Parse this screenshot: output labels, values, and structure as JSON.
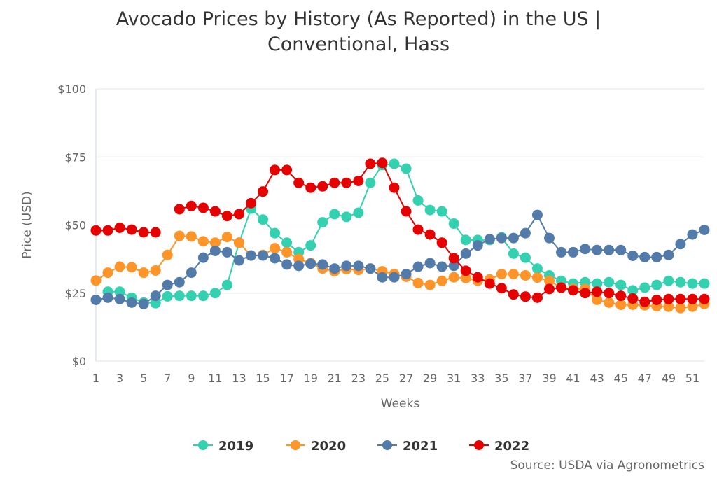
{
  "chart_data": {
    "type": "line",
    "title_line1": "Avocado Prices by History (As Reported) in the US |",
    "title_line2": "Conventional, Hass",
    "xlabel": "Weeks",
    "ylabel": "Price (USD)",
    "ylim": [
      0,
      100
    ],
    "yticks": [
      "$0",
      "$25",
      "$50",
      "$75",
      "$100"
    ],
    "xtick_labels": [
      "1",
      "3",
      "5",
      "7",
      "9",
      "11",
      "13",
      "15",
      "17",
      "19",
      "21",
      "23",
      "25",
      "27",
      "29",
      "31",
      "33",
      "35",
      "37",
      "39",
      "41",
      "43",
      "45",
      "47",
      "49",
      "51"
    ],
    "x": [
      1,
      2,
      3,
      4,
      5,
      6,
      7,
      8,
      9,
      10,
      11,
      12,
      13,
      14,
      15,
      16,
      17,
      18,
      19,
      20,
      21,
      22,
      23,
      24,
      25,
      26,
      27,
      28,
      29,
      30,
      31,
      32,
      33,
      34,
      35,
      36,
      37,
      38,
      39,
      40,
      41,
      42,
      43,
      44,
      45,
      46,
      47,
      48,
      49,
      50,
      51,
      52
    ],
    "grid": "horizontal",
    "legend": "bottom",
    "source": "Source: USDA via Agronometrics",
    "series": [
      {
        "name": "2019",
        "color": "#33d1b0",
        "values": [
          null,
          25.5,
          25.5,
          23.3,
          21.5,
          21.3,
          23.8,
          24,
          24,
          24,
          25,
          28,
          43.5,
          56,
          52,
          47,
          43.5,
          40,
          42.5,
          51,
          54,
          53,
          54.5,
          65.5,
          72,
          72.5,
          70.7,
          59,
          55.5,
          55,
          50.5,
          44.5,
          44.5,
          44.5,
          45.5,
          39.5,
          38,
          34,
          31.5,
          29.5,
          28.5,
          29,
          28.5,
          29,
          28,
          26,
          27,
          28,
          29.5,
          29,
          28.5,
          28.5
        ]
      },
      {
        "name": "2020",
        "color": "#ff9429",
        "values": [
          29.6,
          32.5,
          34.7,
          34.5,
          32.5,
          33.3,
          39,
          46,
          45.8,
          44,
          43.5,
          45.6,
          43.5,
          38.8,
          39,
          41.5,
          40,
          37.5,
          36,
          34,
          33,
          33.8,
          33.5,
          34,
          33,
          32,
          31,
          28.7,
          28,
          29.5,
          30.8,
          30.5,
          29.5,
          30,
          32,
          32,
          31.5,
          30.7,
          29.5,
          27,
          26.5,
          26.5,
          22.5,
          21.5,
          20.7,
          20.7,
          20.5,
          20.2,
          20,
          19.5,
          20,
          21
        ]
      },
      {
        "name": "2021",
        "color": "#527baa",
        "values": [
          22.5,
          23.3,
          22.8,
          21.5,
          21,
          24,
          28,
          29,
          32.5,
          38,
          40.5,
          40,
          37,
          38.8,
          38.8,
          37.8,
          35.5,
          35,
          35.8,
          35.5,
          34,
          35,
          35,
          34,
          30.8,
          30.8,
          32,
          34.7,
          36,
          34.7,
          35,
          39.5,
          42.5,
          44.8,
          45.2,
          45.2,
          47,
          53.7,
          45.2,
          40,
          40,
          41.2,
          40.8,
          40.8,
          40.8,
          38.7,
          38.2,
          38.2,
          39,
          43,
          46.5,
          48.2
        ]
      },
      {
        "name": "2022",
        "color": "#e60000",
        "values": [
          48,
          48,
          49,
          48.3,
          47.3,
          47.3,
          null,
          55.8,
          57,
          56.3,
          55,
          53.3,
          54,
          58,
          62.3,
          70.2,
          70.2,
          65.5,
          63.7,
          64.2,
          65.5,
          65.5,
          66.2,
          72.5,
          72.8,
          63.7,
          55,
          48.3,
          46.5,
          43.5,
          37.8,
          33.2,
          30.8,
          28.5,
          26.8,
          24.5,
          23.7,
          23.3,
          26.5,
          27,
          26,
          25,
          25.5,
          25,
          24,
          23,
          21.8,
          22.5,
          22.8,
          22.8,
          22.8,
          22.8
        ]
      }
    ]
  }
}
